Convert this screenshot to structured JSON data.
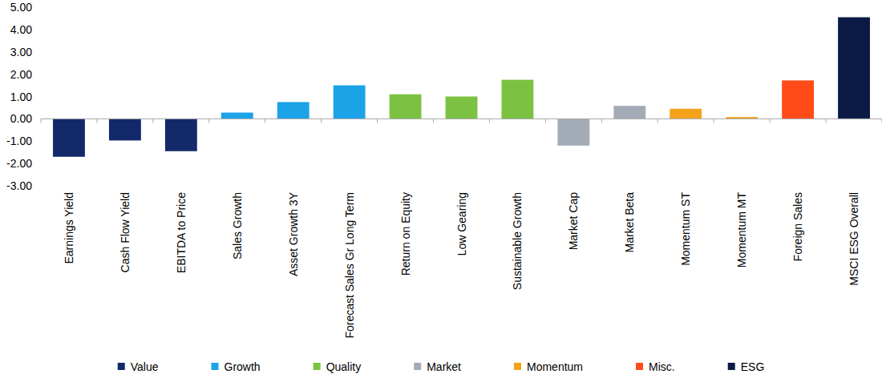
{
  "chart_data": {
    "type": "bar",
    "categories": [
      "Earnings Yield",
      "Cash Flow Yield",
      "EBITDA to Price",
      "Sales Growth",
      "Asset Growth 3Y",
      "Forecast Sales Gr Long Term",
      "Return on Equity",
      "Low Gearing",
      "Sustainable Growth",
      "Market Cap",
      "Market Beta",
      "Momentum ST",
      "Momentum MT",
      "Foreign Sales",
      "MSCI ESG Overall"
    ],
    "series": [
      {
        "name": "Value",
        "color": "#14296a",
        "values": [
          -1.7,
          -0.97,
          -1.45,
          null,
          null,
          null,
          null,
          null,
          null,
          null,
          null,
          null,
          null,
          null,
          null
        ]
      },
      {
        "name": "Growth",
        "color": "#1ba3e8",
        "values": [
          null,
          null,
          null,
          0.28,
          0.75,
          1.5,
          null,
          null,
          null,
          null,
          null,
          null,
          null,
          null,
          null
        ]
      },
      {
        "name": "Quality",
        "color": "#7cc242",
        "values": [
          null,
          null,
          null,
          null,
          null,
          null,
          1.1,
          1.0,
          1.75,
          null,
          null,
          null,
          null,
          null,
          null
        ]
      },
      {
        "name": "Market",
        "color": "#a3acb6",
        "values": [
          null,
          null,
          null,
          null,
          null,
          null,
          null,
          null,
          null,
          -1.2,
          0.58,
          null,
          null,
          null,
          null
        ]
      },
      {
        "name": "Momentum",
        "color": "#f5a21b",
        "values": [
          null,
          null,
          null,
          null,
          null,
          null,
          null,
          null,
          null,
          null,
          null,
          0.45,
          0.08,
          null,
          null
        ]
      },
      {
        "name": "Misc.",
        "color": "#ff4b17",
        "values": [
          null,
          null,
          null,
          null,
          null,
          null,
          null,
          null,
          null,
          null,
          null,
          null,
          null,
          1.72,
          null
        ]
      },
      {
        "name": "ESG",
        "color": "#0b1a45",
        "values": [
          null,
          null,
          null,
          null,
          null,
          null,
          null,
          null,
          null,
          null,
          null,
          null,
          null,
          null,
          4.55
        ]
      }
    ],
    "ylim": [
      -3,
      5
    ],
    "yticks": [
      {
        "value": -3,
        "label": "-3.00"
      },
      {
        "value": -2,
        "label": "-2.00"
      },
      {
        "value": -1,
        "label": "-1.00"
      },
      {
        "value": 0,
        "label": "0.00"
      },
      {
        "value": 1,
        "label": "1.00"
      },
      {
        "value": 2,
        "label": "2.00"
      },
      {
        "value": 3,
        "label": "3.00"
      },
      {
        "value": 4,
        "label": "4.00"
      },
      {
        "value": 5,
        "label": "5.00"
      }
    ],
    "grid": false,
    "legend": "bottom"
  }
}
